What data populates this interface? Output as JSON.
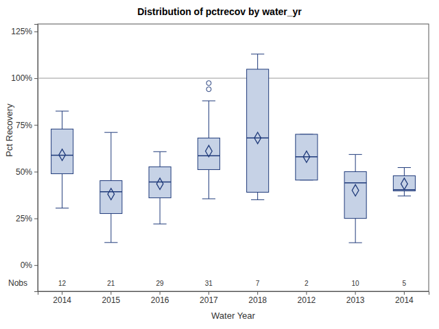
{
  "chart_data": {
    "type": "box",
    "title": "Distribution of pctrecov by water_yr",
    "x_label": "Water Year",
    "y_label": "Pct Recovery",
    "categories": [
      "2014",
      "2015",
      "2016",
      "2017",
      "2018",
      "2012",
      "2013",
      "2014"
    ],
    "boxes": [
      {
        "min": 30.5,
        "q1": 48.9,
        "median": 58.8,
        "q3": 72.8,
        "max": 82.4,
        "mean": 59,
        "outliers": []
      },
      {
        "min": 12.1,
        "q1": 27.6,
        "median": 39.3,
        "q3": 45.2,
        "max": 71,
        "mean": 38,
        "outliers": []
      },
      {
        "min": 22,
        "q1": 36,
        "median": 44.5,
        "q3": 52.6,
        "max": 60.7,
        "mean": 43.5,
        "outliers": []
      },
      {
        "min": 35.5,
        "q1": 51.1,
        "median": 58.5,
        "q3": 68,
        "max": 87.9,
        "mean": 61,
        "outliers": [
          94.1,
          97.4
        ]
      },
      {
        "min": 35,
        "q1": 39,
        "median": 68,
        "q3": 104.8,
        "max": 112.9,
        "mean": 68,
        "outliers": []
      },
      {
        "min": 45.5,
        "q1": 45.5,
        "median": 58,
        "q3": 70,
        "max": 70,
        "mean": 58,
        "outliers": []
      },
      {
        "min": 12,
        "q1": 25,
        "median": 44,
        "q3": 50,
        "max": 59.2,
        "mean": 40,
        "outliers": []
      },
      {
        "min": 37,
        "q1": 39.7,
        "median": 40.4,
        "q3": 47.8,
        "max": 52.2,
        "mean": 43.5,
        "outliers": []
      }
    ],
    "nobs_label": "Nobs",
    "nobs": [
      12,
      21,
      29,
      31,
      7,
      2,
      10,
      5
    ],
    "reference_line": 100,
    "color": "#c6d2e6",
    "ylim": [
      -14,
      129
    ],
    "yticks": [
      {
        "value": 0,
        "label": "0%"
      },
      {
        "value": 25,
        "label": "25%"
      },
      {
        "value": 50,
        "label": "50%"
      },
      {
        "value": 75,
        "label": "75%"
      },
      {
        "value": 100,
        "label": "100%"
      },
      {
        "value": 125,
        "label": "125%"
      }
    ],
    "grid": false
  }
}
